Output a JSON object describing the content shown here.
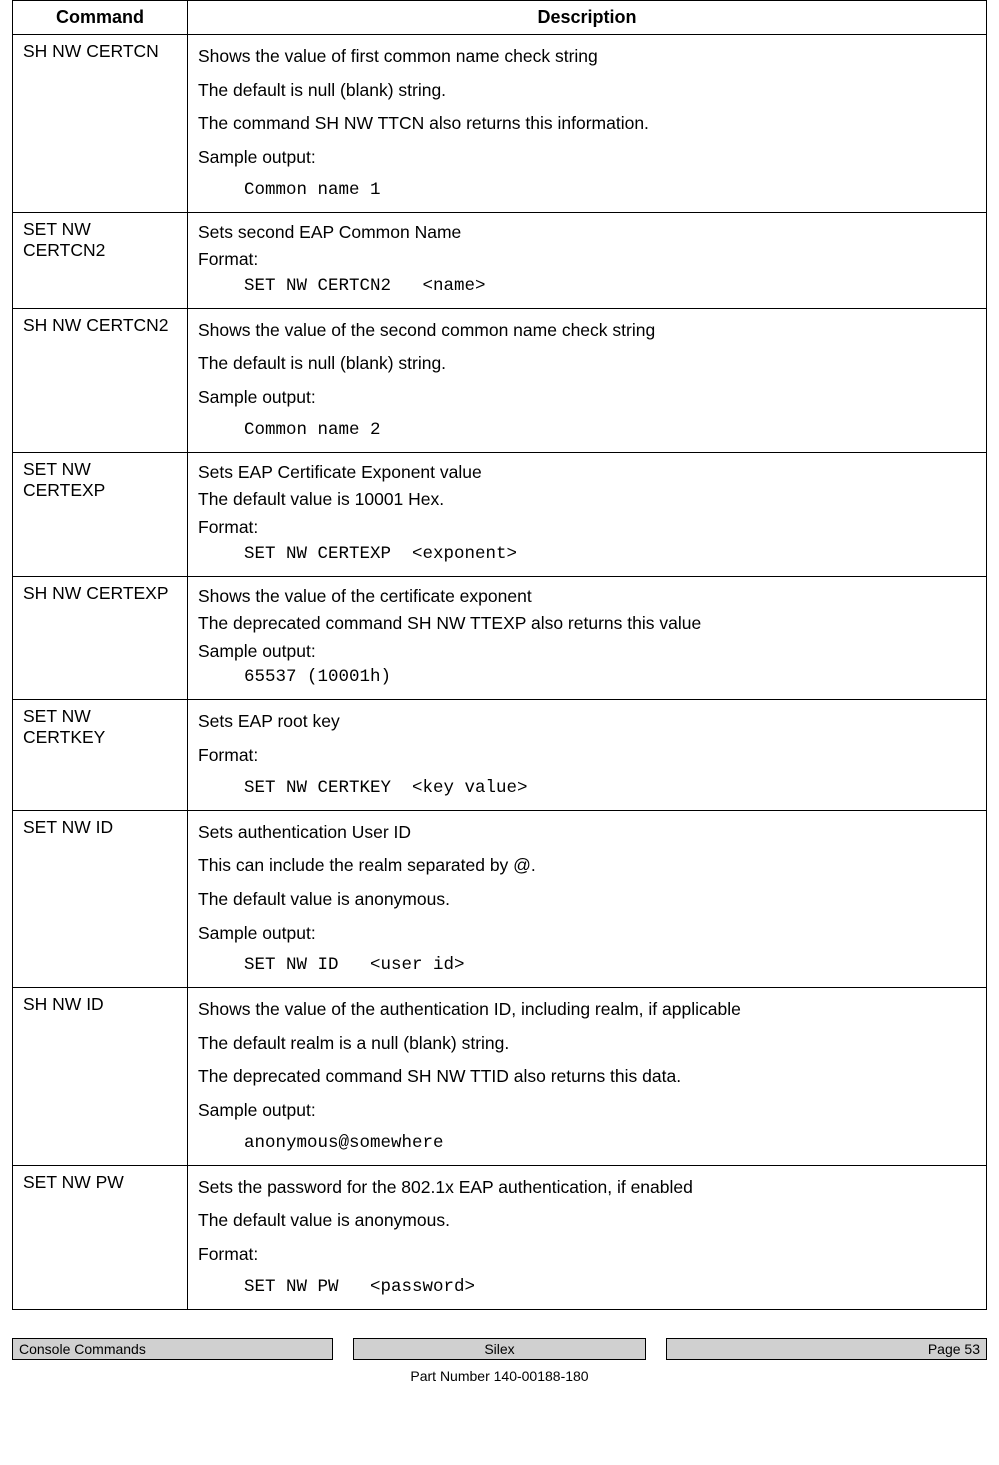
{
  "table": {
    "headers": {
      "command": "Command",
      "description": "Description"
    },
    "rows": [
      {
        "command": "SH NW CERTCN",
        "lines": [
          {
            "type": "p",
            "text": "Shows the value of first common name check string"
          },
          {
            "type": "p",
            "text": "The default is null (blank) string."
          },
          {
            "type": "p",
            "text": "The command SH NW TTCN also returns this information."
          },
          {
            "type": "p",
            "text": "Sample output:"
          },
          {
            "type": "mono",
            "text": "Common name 1"
          }
        ]
      },
      {
        "command": "SET NW CERTCN2",
        "lines": [
          {
            "type": "pt",
            "text": "Sets second EAP Common Name"
          },
          {
            "type": "pt",
            "text": "Format:"
          },
          {
            "type": "mono",
            "text": "SET NW CERTCN2   <name>"
          }
        ]
      },
      {
        "command": "SH NW CERTCN2",
        "lines": [
          {
            "type": "p",
            "text": "Shows the value of the second common name check string"
          },
          {
            "type": "p",
            "text": "The default is null (blank) string."
          },
          {
            "type": "p",
            "text": "Sample output:"
          },
          {
            "type": "mono",
            "text": "Common name 2"
          }
        ]
      },
      {
        "command": "SET NW CERTEXP",
        "lines": [
          {
            "type": "pt",
            "text": "Sets EAP Certificate Exponent value"
          },
          {
            "type": "pt",
            "text": "The default value is 10001 Hex."
          },
          {
            "type": "pt",
            "text": "Format:"
          },
          {
            "type": "mono",
            "text": "SET NW CERTEXP  <exponent>"
          }
        ]
      },
      {
        "command": "SH NW CERTEXP",
        "lines": [
          {
            "type": "pt",
            "text": "Shows the value of the certificate exponent"
          },
          {
            "type": "pt",
            "text": "The deprecated command SH NW TTEXP also returns this value"
          },
          {
            "type": "pt",
            "text": "Sample output:"
          },
          {
            "type": "mono",
            "text": "65537 (10001h)"
          }
        ]
      },
      {
        "command": "SET NW CERTKEY",
        "lines": [
          {
            "type": "p",
            "text": "Sets EAP root key"
          },
          {
            "type": "p",
            "text": "Format:"
          },
          {
            "type": "mono",
            "text": "SET NW CERTKEY  <key value>"
          }
        ]
      },
      {
        "command": "SET NW ID",
        "lines": [
          {
            "type": "p",
            "text": "Sets authentication User ID"
          },
          {
            "type": "p",
            "text": "This can include the realm separated by @."
          },
          {
            "type": "p",
            "text": "The default value is anonymous."
          },
          {
            "type": "p",
            "text": "Sample output:"
          },
          {
            "type": "mono",
            "text": "SET NW ID   <user id>"
          }
        ]
      },
      {
        "command": "SH NW ID",
        "lines": [
          {
            "type": "p",
            "text": "Shows the value of the authentication ID, including realm, if applicable"
          },
          {
            "type": "p",
            "text": "The default realm is a null (blank) string."
          },
          {
            "type": "p",
            "text": "The deprecated command SH NW TTID also returns this data."
          },
          {
            "type": "p",
            "text": "Sample output:"
          },
          {
            "type": "mono",
            "text": "anonymous@somewhere"
          }
        ]
      },
      {
        "command": "SET NW PW",
        "lines": [
          {
            "type": "p",
            "text": "Sets the password for the 802.1x EAP authentication, if enabled"
          },
          {
            "type": "p",
            "text": "The default value is anonymous."
          },
          {
            "type": "p",
            "text": "Format:"
          },
          {
            "type": "mono",
            "text": "SET NW PW   <password>"
          }
        ]
      }
    ]
  },
  "footer": {
    "left": "Console Commands",
    "center": "Silex",
    "right": "Page 53",
    "part_number": "Part Number 140-00188-180"
  }
}
